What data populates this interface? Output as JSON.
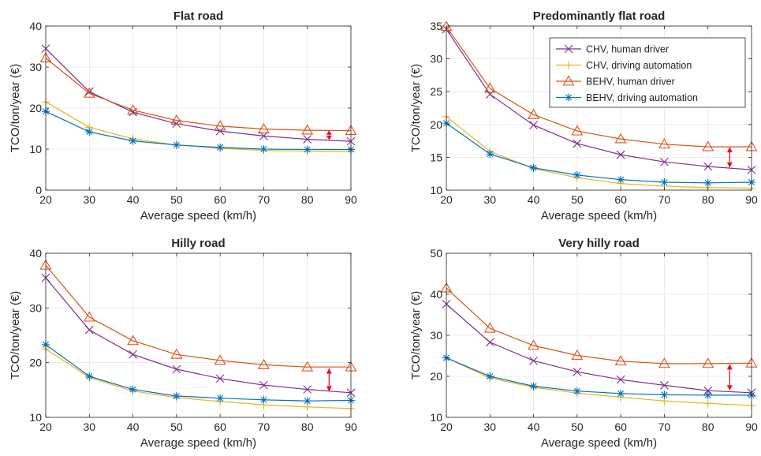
{
  "colors": {
    "chv_human": "#7E2F8E",
    "chv_auto": "#EDB120",
    "behv_human": "#D95319",
    "behv_auto": "#0072BD",
    "arrow": "#E8102A"
  },
  "chart_data": [
    {
      "type": "line",
      "title": "Flat road",
      "xlabel": "Average speed (km/h)",
      "ylabel": "TCO/ton/year (€)",
      "x": [
        20,
        30,
        40,
        50,
        60,
        70,
        80,
        90
      ],
      "xlim": [
        20,
        90
      ],
      "ylim": [
        0,
        40
      ],
      "yticks": [
        0,
        10,
        20,
        30,
        40
      ],
      "grid": true,
      "series": [
        {
          "name": "CHV, human driver",
          "marker": "x",
          "values": [
            34.5,
            24.0,
            19.0,
            16.2,
            14.4,
            13.2,
            12.4,
            11.9
          ]
        },
        {
          "name": "CHV, driving automation",
          "marker": "+",
          "values": [
            21.5,
            15.3,
            12.5,
            11.0,
            10.2,
            9.7,
            9.5,
            9.4
          ]
        },
        {
          "name": "BEHV, human driver",
          "marker": "triangle",
          "values": [
            32.2,
            23.6,
            19.5,
            17.0,
            15.6,
            14.9,
            14.6,
            14.5
          ]
        },
        {
          "name": "BEHV, driving automation",
          "marker": "asterisk",
          "values": [
            19.2,
            14.2,
            12.0,
            11.0,
            10.4,
            10.0,
            9.9,
            9.9
          ]
        }
      ],
      "arrow": {
        "x": 85,
        "from": 12.2,
        "to": 14.6
      }
    },
    {
      "type": "line",
      "title": "Predominantly flat road",
      "xlabel": "Average speed (km/h)",
      "ylabel": "TCO/ton/year (€)",
      "x": [
        20,
        30,
        40,
        50,
        60,
        70,
        80,
        90
      ],
      "xlim": [
        20,
        90
      ],
      "ylim": [
        10,
        35
      ],
      "yticks": [
        10,
        15,
        20,
        25,
        30,
        35
      ],
      "grid": true,
      "legend": "top-right",
      "series": [
        {
          "name": "CHV, human driver",
          "marker": "x",
          "values": [
            34.5,
            24.6,
            19.9,
            17.1,
            15.4,
            14.3,
            13.6,
            13.1
          ]
        },
        {
          "name": "CHV, driving automation",
          "marker": "+",
          "values": [
            21.2,
            15.9,
            13.3,
            11.9,
            11.0,
            10.6,
            10.4,
            10.3
          ]
        },
        {
          "name": "BEHV, human driver",
          "marker": "triangle",
          "values": [
            34.9,
            25.5,
            21.5,
            19.0,
            17.8,
            17.0,
            16.6,
            16.6
          ]
        },
        {
          "name": "BEHV, driving automation",
          "marker": "asterisk",
          "values": [
            20.2,
            15.5,
            13.4,
            12.3,
            11.6,
            11.2,
            11.1,
            11.2
          ]
        }
      ],
      "arrow": {
        "x": 85,
        "from": 13.4,
        "to": 16.6
      }
    },
    {
      "type": "line",
      "title": "Hilly road",
      "xlabel": "Average speed (km/h)",
      "ylabel": "TCO/ton/year (€)",
      "x": [
        20,
        30,
        40,
        50,
        60,
        70,
        80,
        90
      ],
      "xlim": [
        20,
        90
      ],
      "ylim": [
        10,
        40
      ],
      "yticks": [
        10,
        20,
        30,
        40
      ],
      "grid": true,
      "series": [
        {
          "name": "CHV, human driver",
          "marker": "x",
          "values": [
            35.5,
            26.0,
            21.5,
            18.8,
            17.1,
            15.9,
            15.1,
            14.5
          ]
        },
        {
          "name": "CHV, driving automation",
          "marker": "+",
          "values": [
            22.5,
            17.3,
            14.8,
            13.6,
            12.9,
            12.3,
            11.9,
            11.6
          ]
        },
        {
          "name": "BEHV, human driver",
          "marker": "triangle",
          "values": [
            37.8,
            28.3,
            24.0,
            21.5,
            20.4,
            19.6,
            19.2,
            19.2
          ]
        },
        {
          "name": "BEHV, driving automation",
          "marker": "asterisk",
          "values": [
            23.3,
            17.5,
            15.1,
            13.9,
            13.5,
            13.2,
            13.0,
            13.1
          ]
        }
      ],
      "arrow": {
        "x": 85,
        "from": 14.7,
        "to": 19.0
      }
    },
    {
      "type": "line",
      "title": "Very hilly road",
      "xlabel": "Average speed (km/h)",
      "ylabel": "TCO/ton/year (€)",
      "x": [
        20,
        30,
        40,
        50,
        60,
        70,
        80,
        90
      ],
      "xlim": [
        20,
        90
      ],
      "ylim": [
        10,
        50
      ],
      "yticks": [
        10,
        20,
        30,
        40,
        50
      ],
      "grid": true,
      "series": [
        {
          "name": "CHV, human driver",
          "marker": "x",
          "values": [
            37.6,
            28.3,
            23.8,
            21.1,
            19.2,
            17.8,
            16.5,
            16.0
          ]
        },
        {
          "name": "CHV, driving automation",
          "marker": "+",
          "values": [
            24.5,
            19.6,
            17.3,
            15.9,
            14.9,
            14.0,
            13.4,
            12.9
          ]
        },
        {
          "name": "BEHV, human driver",
          "marker": "triangle",
          "values": [
            41.5,
            31.7,
            27.5,
            25.1,
            23.7,
            23.1,
            23.1,
            23.2
          ]
        },
        {
          "name": "BEHV, driving automation",
          "marker": "asterisk",
          "values": [
            24.5,
            20.0,
            17.6,
            16.4,
            15.8,
            15.5,
            15.4,
            15.4
          ]
        }
      ],
      "arrow": {
        "x": 85,
        "from": 16.5,
        "to": 23.0
      }
    }
  ]
}
